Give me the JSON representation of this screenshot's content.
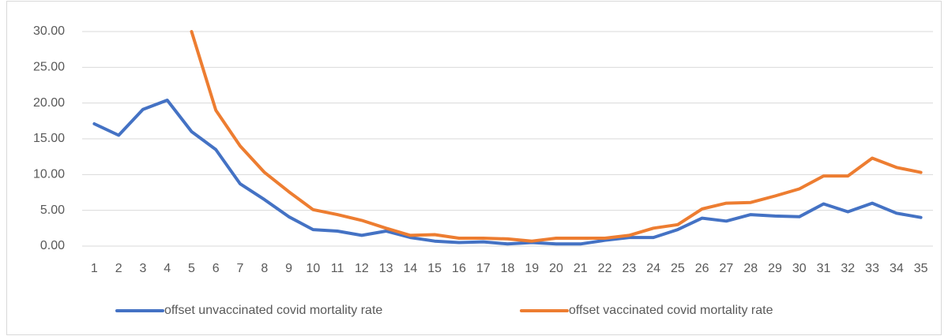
{
  "chart_data": {
    "type": "line",
    "categories": [
      "1",
      "2",
      "3",
      "4",
      "5",
      "6",
      "7",
      "8",
      "9",
      "10",
      "11",
      "12",
      "13",
      "14",
      "15",
      "16",
      "17",
      "18",
      "19",
      "20",
      "21",
      "22",
      "23",
      "24",
      "25",
      "26",
      "27",
      "28",
      "29",
      "30",
      "31",
      "32",
      "33",
      "34",
      "35"
    ],
    "series": [
      {
        "name": "offset unvaccinated covid mortality rate",
        "color": "#4472c4",
        "values": [
          17.1,
          15.5,
          19.1,
          20.4,
          16.0,
          13.5,
          8.7,
          6.5,
          4.1,
          2.3,
          2.1,
          1.5,
          2.1,
          1.2,
          0.7,
          0.5,
          0.6,
          0.3,
          0.5,
          0.3,
          0.3,
          0.8,
          1.2,
          1.2,
          2.3,
          3.9,
          3.5,
          4.4,
          4.2,
          4.1,
          5.9,
          4.8,
          6.0,
          4.6,
          4.0
        ]
      },
      {
        "name": "offset vaccinated covid mortality rate",
        "color": "#ed7d31",
        "values": [
          null,
          null,
          null,
          null,
          30,
          19.0,
          14.0,
          10.3,
          7.6,
          5.1,
          4.4,
          3.6,
          2.5,
          1.5,
          1.6,
          1.1,
          1.1,
          1.0,
          0.7,
          1.1,
          1.1,
          1.1,
          1.5,
          2.5,
          3.0,
          5.2,
          6.0,
          6.1,
          7.0,
          8.0,
          9.8,
          9.8,
          12.3,
          11.0,
          10.3
        ]
      }
    ],
    "ylim": [
      0,
      30
    ],
    "yticks": [
      {
        "value": 0,
        "label": "0.00"
      },
      {
        "value": 5,
        "label": "5.00"
      },
      {
        "value": 10,
        "label": "10.00"
      },
      {
        "value": 15,
        "label": "15.00"
      },
      {
        "value": 20,
        "label": "20.00"
      },
      {
        "value": 25,
        "label": "25.00"
      },
      {
        "value": 30,
        "label": "30.00"
      }
    ],
    "grid": true,
    "legend": "bottom"
  }
}
